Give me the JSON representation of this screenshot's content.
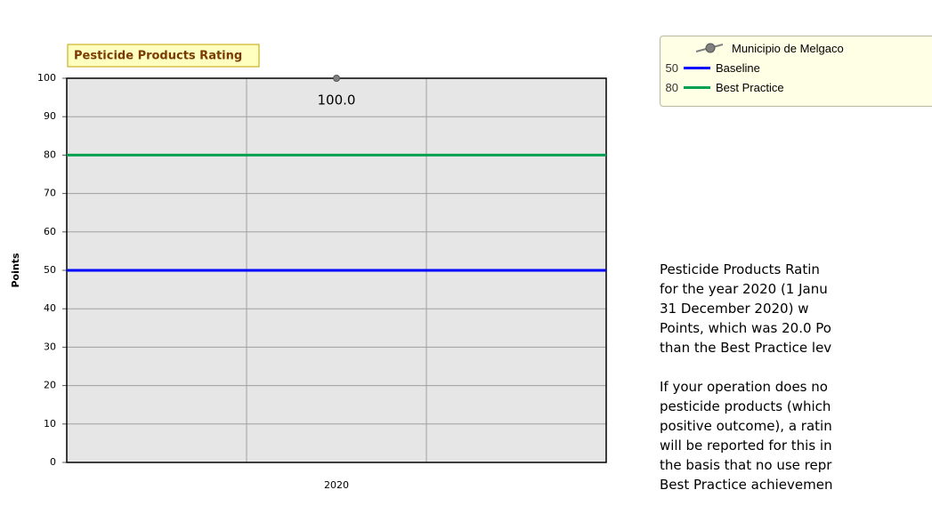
{
  "chart_data": {
    "type": "line",
    "title": "Pesticide Products Rating",
    "ylabel": "Points",
    "categories": [
      "2020"
    ],
    "series": [
      {
        "name": "Municipio de Melgaco",
        "color": "#808080",
        "values": [
          100
        ],
        "value_labels": [
          "100.0"
        ]
      }
    ],
    "reference_lines": [
      {
        "name": "Baseline",
        "value": 50,
        "color": "#0000ff"
      },
      {
        "name": "Best Practice",
        "value": 80,
        "color": "#00a050"
      }
    ],
    "ylim": [
      0,
      100
    ],
    "yticks": [
      0,
      10,
      20,
      30,
      40,
      50,
      60,
      70,
      80,
      90,
      100
    ],
    "grid": true
  },
  "text": {
    "paragraphs": [
      [
        "Pesticide Products Ratin",
        "for the year 2020 (1 Janu",
        "31 December 2020) w",
        "Points, which was 20.0 Po",
        "than the Best Practice lev"
      ],
      [
        "If your operation does no",
        "pesticide products (which",
        "positive outcome), a ratin",
        "will be reported for this in",
        "the basis that no use repr",
        "Best Practice achievemen"
      ]
    ]
  }
}
